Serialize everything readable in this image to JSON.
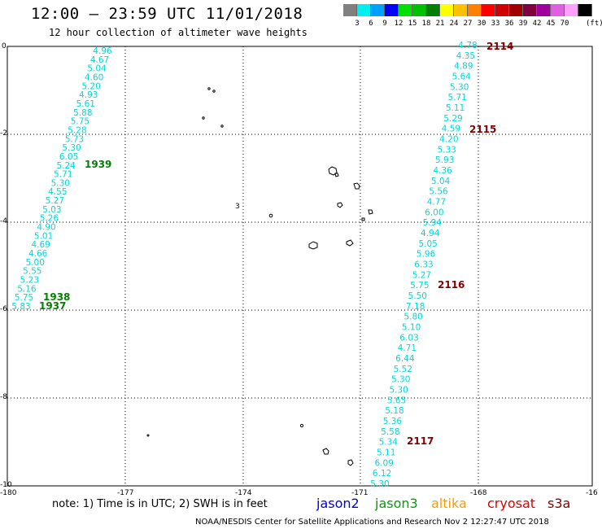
{
  "header": {
    "title": "12:00 – 23:59 UTC 11/01/2018",
    "subtitle": "12 hour collection of altimeter wave heights"
  },
  "colorbar": {
    "unit": "(ft)",
    "colors": [
      "#808080",
      "#00f0f0",
      "#00a0ff",
      "#0000ff",
      "#00e000",
      "#00c000",
      "#008000",
      "#ffff00",
      "#ffc000",
      "#ff8000",
      "#ff0000",
      "#d00000",
      "#a00000",
      "#800040",
      "#a000a0",
      "#e060e0",
      "#ffa0ff",
      "#000000"
    ],
    "labels": [
      "3",
      "6",
      "9",
      "12",
      "15",
      "18",
      "21",
      "24",
      "27",
      "30",
      "33",
      "36",
      "39",
      "42",
      "45",
      "70"
    ]
  },
  "axes": {
    "y_ticks": [
      "0",
      "-2",
      "-4",
      "-6",
      "-8",
      "-10"
    ],
    "x_ticks": [
      "-180",
      "-177",
      "-174",
      "-171",
      "-168",
      "-16"
    ]
  },
  "tracks": {
    "west_color": "#00d8d8",
    "east_color": "#00d8d8",
    "west_values": [
      "4.96",
      "4.67",
      "5.04",
      "4.60",
      "5.20",
      "4.93",
      "5.61",
      "5.88",
      "5.75",
      "5.28",
      "5.73",
      "5.30",
      "6.05",
      "5.24",
      "5.71",
      "5.30",
      "4.55",
      "5.27",
      "5.03",
      "5.26",
      "4.90",
      "5.01",
      "4.69",
      "4.66",
      "5.00",
      "5.55",
      "5.23",
      "5.16",
      "5.75",
      "5.83"
    ],
    "east_values": [
      "4.78",
      "4.35",
      "4.89",
      "5.64",
      "5.30",
      "5.71",
      "5.11",
      "5.29",
      "4.59",
      "4.20",
      "5.33",
      "5.93",
      "4.36",
      "5.04",
      "5.56",
      "4.77",
      "6.00",
      "5.94",
      "4.94",
      "5.05",
      "5.96",
      "6.33",
      "5.27",
      "5.75",
      "5.50",
      "7.18",
      "5.80",
      "5.10",
      "6.03",
      "4.71",
      "6.44",
      "5.52",
      "5.30",
      "5.30",
      "5.65",
      "5.18",
      "5.36",
      "5.58",
      "5.34",
      "5.11",
      "6.09",
      "6.12",
      "5.30"
    ],
    "time_labels": {
      "west": [
        {
          "text": "1939",
          "color": "#008000"
        },
        {
          "text": "1938",
          "color": "#008000"
        },
        {
          "text": "1937",
          "color": "#008000"
        }
      ],
      "east": [
        {
          "text": "2114",
          "color": "#800000"
        },
        {
          "text": "2115",
          "color": "#800000"
        },
        {
          "text": "2116",
          "color": "#800000"
        },
        {
          "text": "2117",
          "color": "#800000"
        }
      ]
    },
    "island_label": "3"
  },
  "footer": {
    "note": "note: 1) Time is in UTC; 2) SWH is in feet",
    "satellites": [
      {
        "name": "jason2",
        "color": "#0000dd"
      },
      {
        "name": "jason3",
        "color": "#00a000"
      },
      {
        "name": "altika",
        "color": "#ff9900"
      },
      {
        "name": "cryosat",
        "color": "#dd0000"
      },
      {
        "name": "s3a",
        "color": "#800000"
      }
    ],
    "credit": "NOAA/NESDIS Center for Satellite Applications and Research   Nov  2 12:27:47 UTC 2018"
  }
}
